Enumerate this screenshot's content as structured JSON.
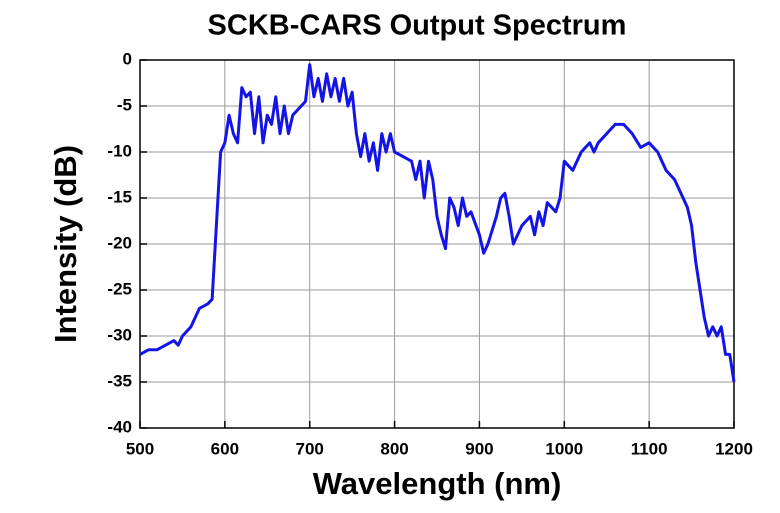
{
  "chart_data": {
    "type": "line",
    "title": "SCKB-CARS Output Spectrum",
    "x_label": "Wavelength (nm)",
    "y_label": "Intensity (dB)",
    "xlim": [
      500,
      1200
    ],
    "xticks": [
      500,
      600,
      700,
      800,
      900,
      1000,
      1100,
      1200
    ],
    "ylim": [
      -40,
      0
    ],
    "yticks": [
      0,
      -5,
      -10,
      -15,
      -20,
      -25,
      -30,
      -35,
      -40
    ],
    "grid": true,
    "series": [
      {
        "color": "#1414e6",
        "x": [
          500,
          510,
          520,
          530,
          540,
          545,
          550,
          560,
          565,
          570,
          580,
          585,
          590,
          595,
          600,
          605,
          610,
          615,
          620,
          625,
          630,
          635,
          640,
          645,
          650,
          655,
          660,
          665,
          670,
          675,
          680,
          690,
          695,
          700,
          705,
          710,
          715,
          720,
          725,
          730,
          735,
          740,
          745,
          750,
          755,
          760,
          765,
          770,
          775,
          780,
          785,
          790,
          795,
          800,
          810,
          820,
          825,
          830,
          835,
          840,
          845,
          850,
          855,
          860,
          865,
          870,
          875,
          880,
          885,
          890,
          900,
          905,
          910,
          915,
          920,
          925,
          930,
          935,
          940,
          945,
          950,
          960,
          965,
          970,
          975,
          980,
          990,
          995,
          1000,
          1005,
          1010,
          1020,
          1030,
          1035,
          1040,
          1050,
          1060,
          1070,
          1080,
          1090,
          1100,
          1110,
          1120,
          1130,
          1140,
          1145,
          1150,
          1155,
          1160,
          1165,
          1170,
          1175,
          1180,
          1185,
          1190,
          1195,
          1200
        ],
        "values": [
          -32,
          -31.5,
          -31.5,
          -31,
          -30.5,
          -31,
          -30,
          -29,
          -28,
          -27,
          -26.5,
          -26,
          -18,
          -10,
          -9,
          -6,
          -8,
          -9,
          -3,
          -4,
          -3.5,
          -8,
          -4,
          -9,
          -6,
          -7,
          -4,
          -8,
          -5,
          -8,
          -6,
          -5,
          -4.5,
          -0.5,
          -4,
          -2,
          -4.5,
          -1.5,
          -4,
          -2,
          -4.5,
          -2,
          -5,
          -3.5,
          -8,
          -10.5,
          -8,
          -11,
          -9,
          -12,
          -8,
          -10,
          -8,
          -10,
          -10.5,
          -11,
          -13,
          -11,
          -15,
          -11,
          -13,
          -17,
          -19,
          -20.5,
          -15,
          -16,
          -18,
          -15,
          -17,
          -16.5,
          -19,
          -21,
          -20,
          -18.5,
          -17,
          -15,
          -14.5,
          -17,
          -20,
          -19,
          -18,
          -17,
          -19,
          -16.5,
          -18,
          -15.5,
          -16.5,
          -15,
          -11,
          -11.5,
          -12,
          -10,
          -9,
          -10,
          -9,
          -8,
          -7,
          -7,
          -8,
          -9.5,
          -9,
          -10,
          -12,
          -13,
          -15,
          -16,
          -18,
          -22,
          -25,
          -28,
          -30,
          -29,
          -30,
          -29,
          -32,
          -32,
          -35
        ]
      }
    ]
  }
}
